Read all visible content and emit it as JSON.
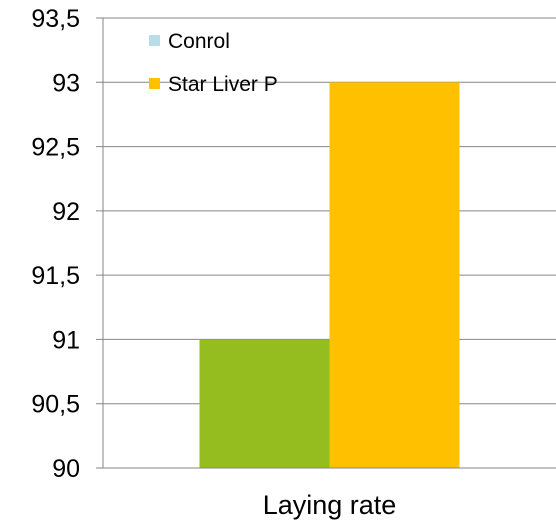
{
  "chart_data": {
    "type": "bar",
    "categories": [
      "Laying rate"
    ],
    "series": [
      {
        "name": "Conrol",
        "values": [
          91
        ],
        "color": "#95bd1f",
        "legend_color": "#b7dde8"
      },
      {
        "name": "Star Liver P",
        "values": [
          93
        ],
        "color": "#ffc000",
        "legend_color": "#ffc000"
      }
    ],
    "ylim": [
      90,
      93.5
    ],
    "yticks": [
      "90",
      "90,5",
      "91",
      "91,5",
      "92",
      "92,5",
      "93",
      "93,5"
    ],
    "grid": true,
    "legend_position": "top-left",
    "xlabel": "",
    "ylabel": ""
  }
}
